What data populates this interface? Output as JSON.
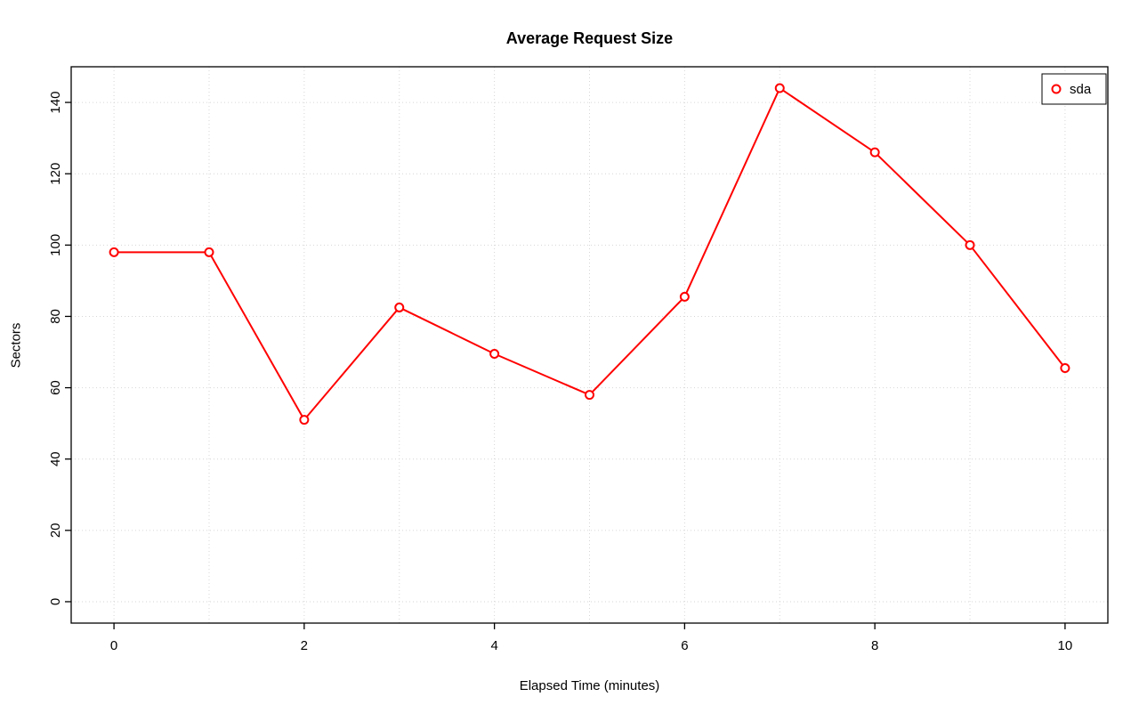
{
  "chart_data": {
    "type": "line",
    "title": "Average Request Size",
    "xlabel": "Elapsed Time (minutes)",
    "ylabel": "Sectors",
    "x": [
      0,
      1,
      2,
      3,
      4,
      5,
      6,
      7,
      8,
      9,
      10
    ],
    "series": [
      {
        "name": "sda",
        "color": "#FF0000",
        "marker": "open-circle",
        "values": [
          98,
          98,
          51,
          82.5,
          69.5,
          58,
          85.5,
          144,
          126,
          100,
          65.5
        ]
      }
    ],
    "xlim": [
      -0.45,
      10.45
    ],
    "ylim": [
      -6,
      150
    ],
    "xticks": [
      0,
      2,
      4,
      6,
      8,
      10
    ],
    "yticks": [
      0,
      20,
      40,
      60,
      80,
      100,
      120,
      140
    ],
    "xgrid_step": 1,
    "grid": true,
    "grid_style": "dotted",
    "grid_color": "#D6D6D6",
    "axis_color": "#000000",
    "background_color": "#FFFFFF",
    "legend": {
      "position": "top-right",
      "entries": [
        {
          "label": "sda",
          "color": "#FF0000",
          "symbol": "open-circle"
        }
      ]
    }
  }
}
